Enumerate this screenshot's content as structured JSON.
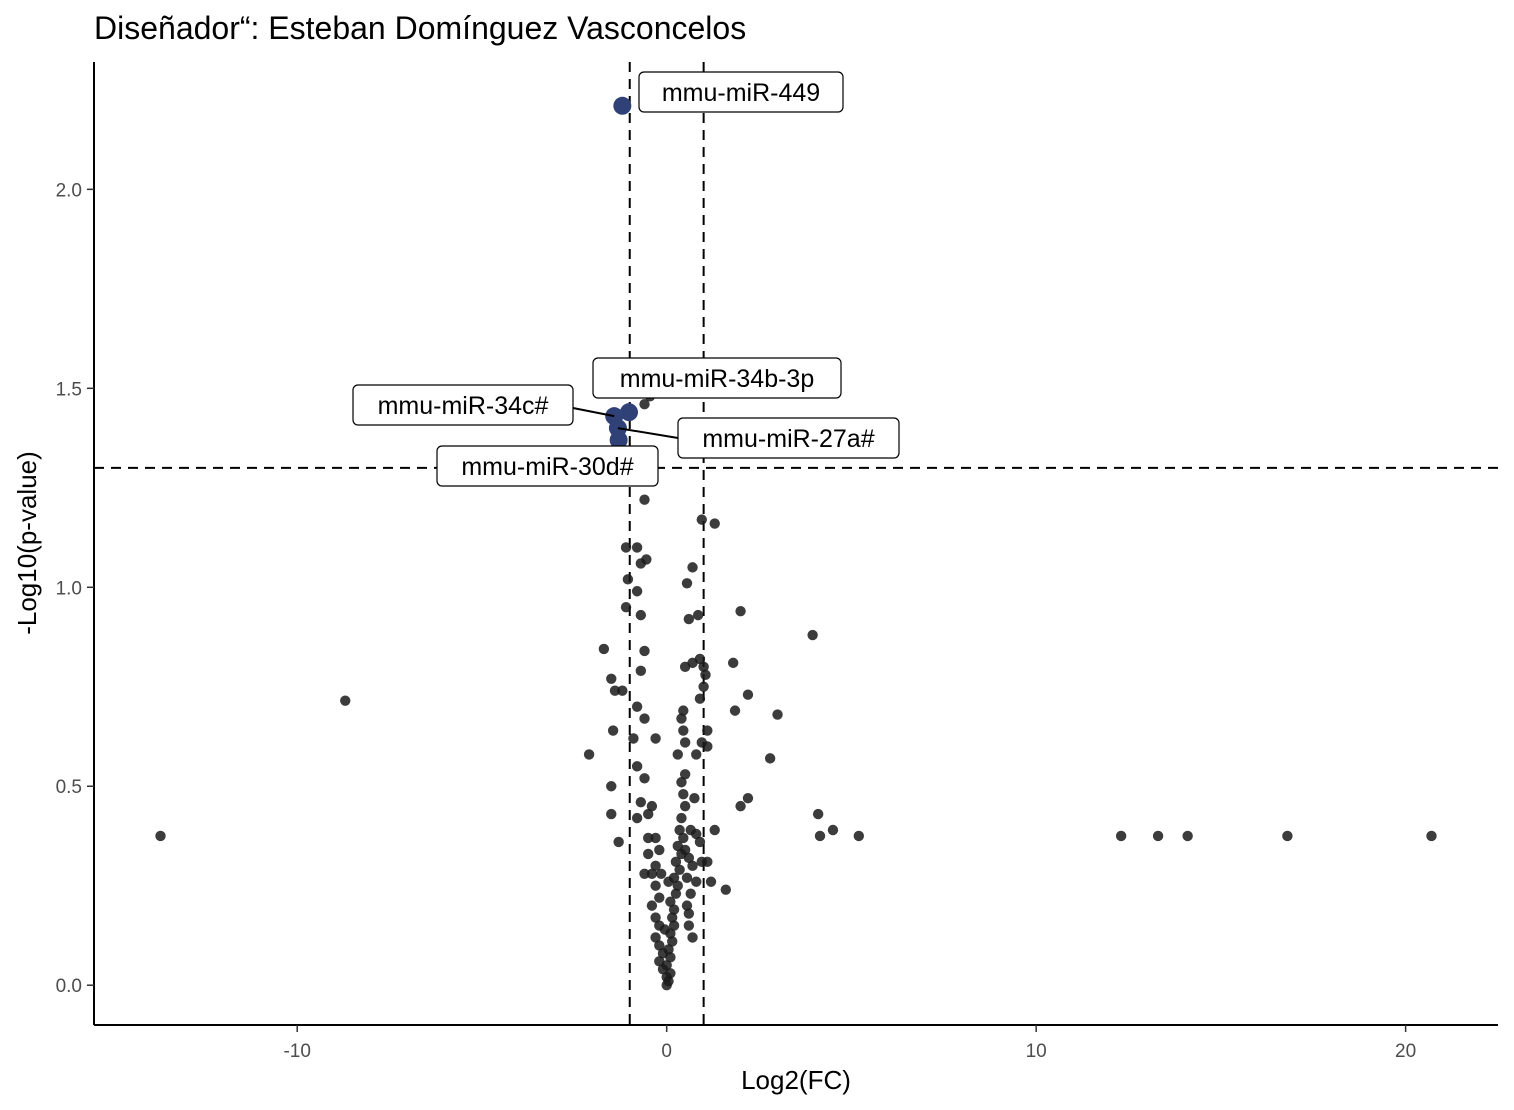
{
  "chart_data": {
    "type": "scatter",
    "title": "Diseñador“: Esteban Domínguez Vasconcelos",
    "xlabel": "Log2(FC)",
    "ylabel": "-Log10(p-value)",
    "xlim": [
      -15.5,
      22.5
    ],
    "ylim": [
      -0.1,
      2.32
    ],
    "x_ticks": [
      -10,
      0,
      10,
      20
    ],
    "x_tick_labels": [
      "-10",
      "0",
      "10",
      "20"
    ],
    "y_ticks": [
      0.0,
      0.5,
      1.0,
      1.5,
      2.0
    ],
    "y_tick_labels": [
      "0.0",
      "0.5",
      "1.0",
      "1.5",
      "2.0"
    ],
    "grid": false,
    "legend": "none",
    "thresholds": {
      "fc_lines": [
        -1,
        1
      ],
      "pvalue_line": 1.3
    },
    "colors": {
      "significant": "#2f4177",
      "nonsignificant": "#1a1a1a",
      "lines": "#000000"
    },
    "significant": [
      {
        "label": "mmu-miR-449",
        "x": -1.2,
        "y": 2.21
      },
      {
        "label": "mmu-miR-34b-3p",
        "x": -1.02,
        "y": 1.44
      },
      {
        "label": "mmu-miR-34c#",
        "x": -1.42,
        "y": 1.43
      },
      {
        "label": "mmu-miR-27a#",
        "x": -1.32,
        "y": 1.4
      },
      {
        "label": "mmu-miR-30d#",
        "x": -1.3,
        "y": 1.37
      }
    ],
    "points": [
      [
        -13.7,
        0.375
      ],
      [
        -8.7,
        0.715
      ],
      [
        -2.1,
        0.58
      ],
      [
        -1.7,
        0.845
      ],
      [
        -1.5,
        0.77
      ],
      [
        -1.4,
        0.74
      ],
      [
        -1.45,
        0.64
      ],
      [
        -1.5,
        0.5
      ],
      [
        -1.5,
        0.43
      ],
      [
        -1.3,
        0.36
      ],
      [
        -1.1,
        1.1
      ],
      [
        -1.05,
        1.02
      ],
      [
        -1.1,
        0.95
      ],
      [
        -1.2,
        0.74
      ],
      [
        -0.9,
        0.62
      ],
      [
        -0.8,
        0.55
      ],
      [
        -0.6,
        0.52
      ],
      [
        -0.7,
        0.46
      ],
      [
        -0.8,
        0.42
      ],
      [
        -0.6,
        0.28
      ],
      [
        -0.6,
        1.22
      ],
      [
        -0.55,
        1.07
      ],
      [
        -0.7,
        1.06
      ],
      [
        -0.8,
        1.1
      ],
      [
        -0.8,
        0.99
      ],
      [
        -0.7,
        0.93
      ],
      [
        -0.6,
        0.84
      ],
      [
        -0.7,
        0.79
      ],
      [
        -0.8,
        0.7
      ],
      [
        -0.6,
        0.67
      ],
      [
        -0.3,
        0.62
      ],
      [
        -0.5,
        0.37
      ],
      [
        -0.4,
        0.45
      ],
      [
        -0.5,
        0.43
      ],
      [
        -0.3,
        0.37
      ],
      [
        -0.2,
        0.34
      ],
      [
        -0.5,
        0.33
      ],
      [
        -0.4,
        0.28
      ],
      [
        -0.3,
        0.25
      ],
      [
        -0.2,
        0.22
      ],
      [
        -0.4,
        0.2
      ],
      [
        -0.3,
        0.17
      ],
      [
        -0.2,
        0.15
      ],
      [
        -0.3,
        0.12
      ],
      [
        -0.2,
        0.1
      ],
      [
        -0.1,
        0.08
      ],
      [
        -0.2,
        0.06
      ],
      [
        -0.1,
        0.04
      ],
      [
        0.0,
        0.02
      ],
      [
        0.0,
        0.0
      ],
      [
        0.05,
        0.01
      ],
      [
        0.1,
        0.03
      ],
      [
        0.0,
        0.05
      ],
      [
        0.1,
        0.07
      ],
      [
        0.05,
        0.09
      ],
      [
        0.15,
        0.11
      ],
      [
        0.1,
        0.13
      ],
      [
        0.2,
        0.15
      ],
      [
        0.15,
        0.17
      ],
      [
        0.2,
        0.19
      ],
      [
        0.1,
        0.21
      ],
      [
        0.25,
        0.23
      ],
      [
        0.3,
        0.25
      ],
      [
        0.2,
        0.27
      ],
      [
        0.35,
        0.29
      ],
      [
        0.25,
        0.31
      ],
      [
        0.4,
        0.33
      ],
      [
        0.3,
        0.35
      ],
      [
        0.45,
        0.37
      ],
      [
        0.35,
        0.39
      ],
      [
        0.4,
        0.42
      ],
      [
        0.5,
        0.45
      ],
      [
        0.45,
        0.48
      ],
      [
        0.4,
        0.51
      ],
      [
        0.5,
        0.53
      ],
      [
        0.3,
        0.58
      ],
      [
        0.5,
        0.61
      ],
      [
        0.45,
        0.64
      ],
      [
        0.4,
        0.67
      ],
      [
        0.45,
        0.69
      ],
      [
        0.5,
        0.8
      ],
      [
        0.7,
        0.81
      ],
      [
        0.9,
        0.82
      ],
      [
        1.0,
        0.8
      ],
      [
        1.05,
        0.78
      ],
      [
        1.0,
        0.75
      ],
      [
        0.9,
        0.72
      ],
      [
        1.1,
        0.64
      ],
      [
        1.1,
        0.6
      ],
      [
        0.95,
        0.61
      ],
      [
        0.8,
        0.58
      ],
      [
        0.75,
        0.47
      ],
      [
        0.65,
        0.39
      ],
      [
        0.8,
        0.38
      ],
      [
        0.9,
        0.36
      ],
      [
        1.1,
        0.31
      ],
      [
        0.95,
        0.31
      ],
      [
        1.2,
        0.26
      ],
      [
        1.6,
        0.24
      ],
      [
        1.3,
        0.39
      ],
      [
        0.6,
        0.15
      ],
      [
        0.7,
        0.12
      ],
      [
        0.55,
        0.2
      ],
      [
        0.65,
        0.23
      ],
      [
        0.55,
        0.27
      ],
      [
        0.6,
        0.32
      ],
      [
        0.5,
        0.34
      ],
      [
        0.7,
        0.3
      ],
      [
        0.8,
        0.26
      ],
      [
        0.6,
        0.18
      ],
      [
        0.6,
        0.92
      ],
      [
        0.55,
        1.01
      ],
      [
        0.7,
        1.05
      ],
      [
        0.85,
        0.93
      ],
      [
        0.95,
        1.17
      ],
      [
        1.3,
        1.16
      ],
      [
        -0.45,
        1.48
      ],
      [
        -0.6,
        1.46
      ],
      [
        1.8,
        0.81
      ],
      [
        2.0,
        0.94
      ],
      [
        2.2,
        0.73
      ],
      [
        1.85,
        0.69
      ],
      [
        2.0,
        0.45
      ],
      [
        2.2,
        0.47
      ],
      [
        2.8,
        0.57
      ],
      [
        3.0,
        0.68
      ],
      [
        3.95,
        0.88
      ],
      [
        4.1,
        0.43
      ],
      [
        4.15,
        0.375
      ],
      [
        4.5,
        0.39
      ],
      [
        5.2,
        0.375
      ],
      [
        12.3,
        0.375
      ],
      [
        13.3,
        0.375
      ],
      [
        14.1,
        0.375
      ],
      [
        16.8,
        0.375
      ],
      [
        20.7,
        0.375
      ],
      [
        -0.3,
        0.3
      ],
      [
        -0.15,
        0.28
      ],
      [
        0.05,
        0.26
      ],
      [
        -0.05,
        0.14
      ]
    ]
  }
}
